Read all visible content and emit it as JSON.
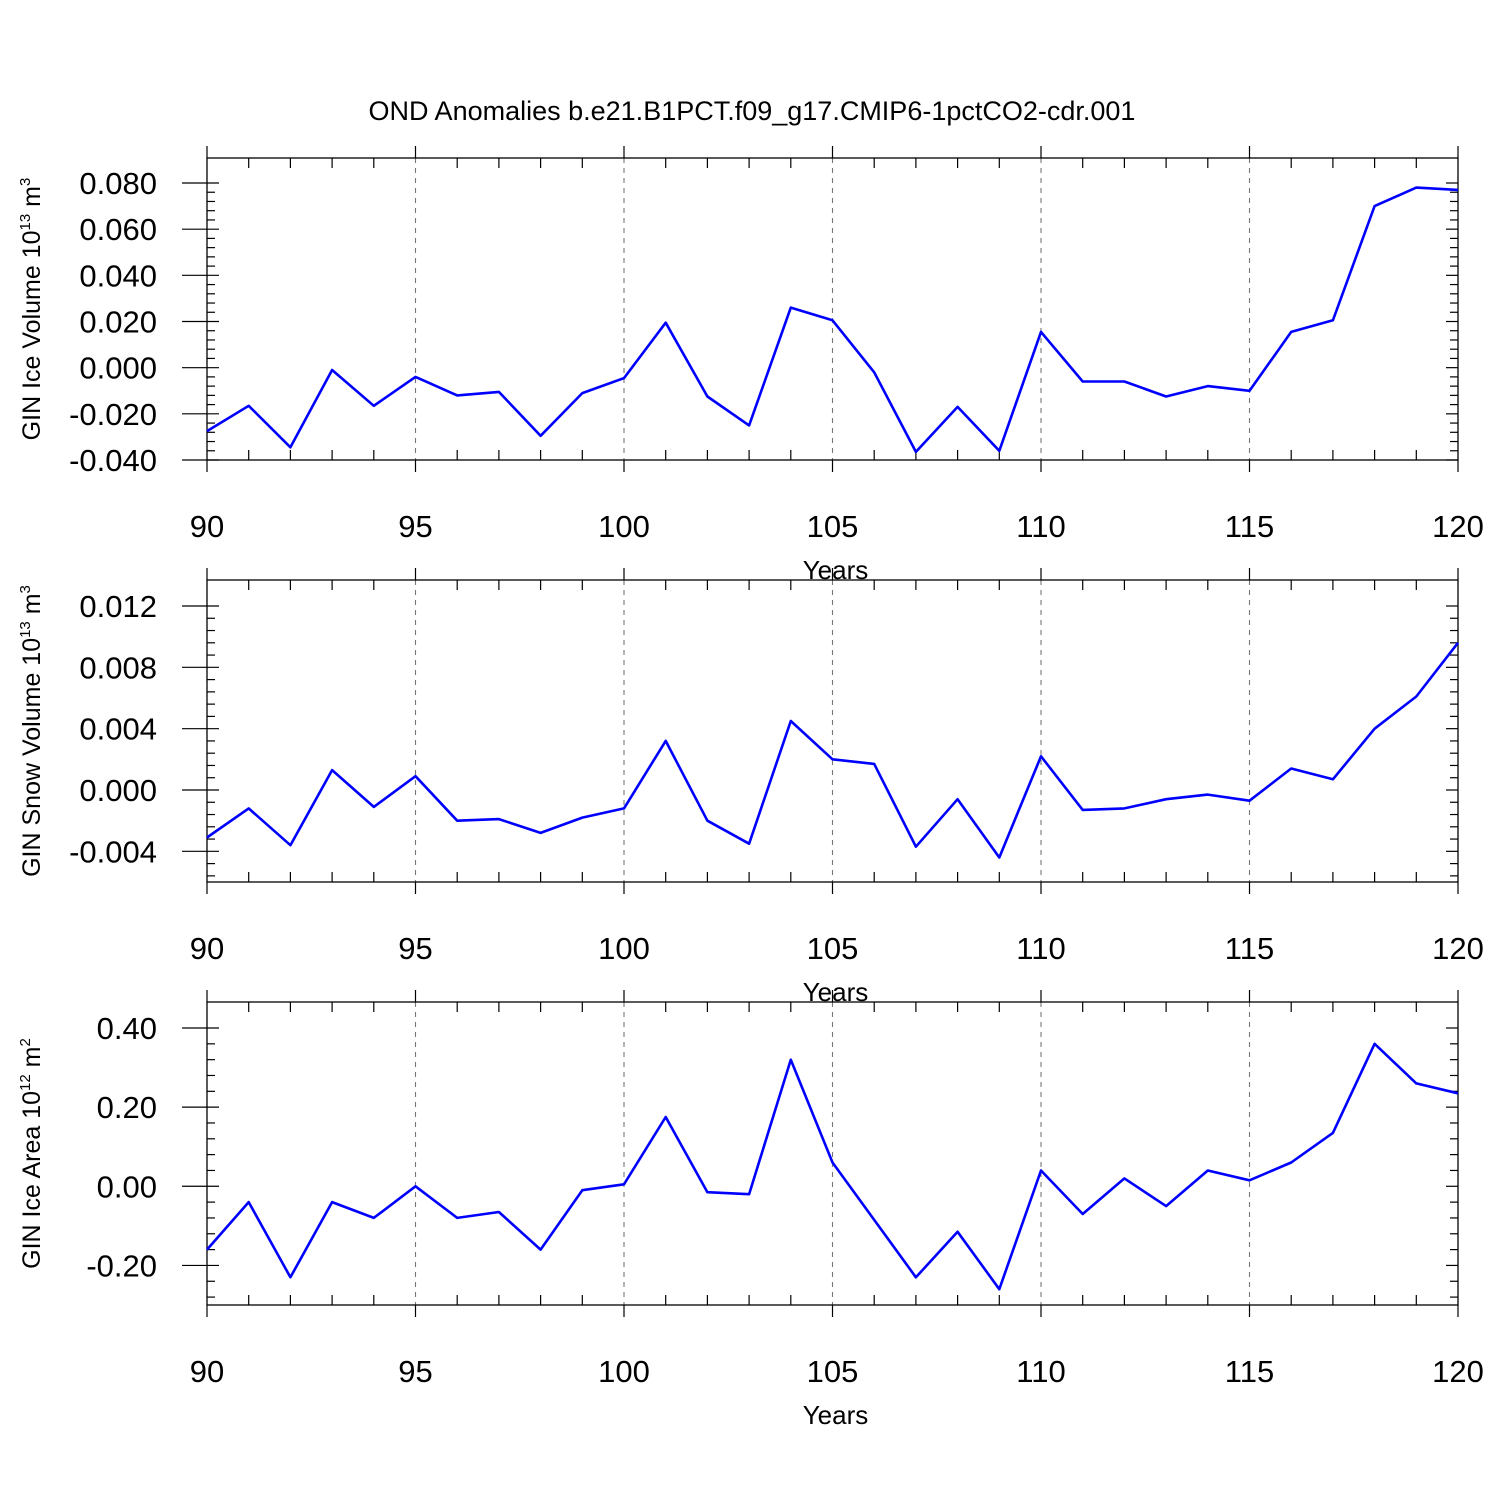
{
  "title": "OND Anomalies b.e21.B1PCT.f09_g17.CMIP6-1pctCO2-cdr.001",
  "colors": {
    "series": "#0000ff",
    "grid": "#777777",
    "axis": "#000000"
  },
  "chart_data": [
    {
      "type": "line",
      "ylabel": {
        "main": "GIN Ice Volume 10",
        "exp": "13",
        "unit": " m",
        "unit_exp": "3"
      },
      "xlabel": "Years",
      "xlim": [
        90,
        120
      ],
      "ylim": [
        -0.04,
        0.08
      ],
      "x_ticks": [
        90,
        95,
        100,
        105,
        110,
        115,
        120
      ],
      "x_tick_labels": [
        "90",
        "95",
        "100",
        "105",
        "110",
        "115",
        "120"
      ],
      "y_ticks": [
        -0.04,
        -0.02,
        0.0,
        0.02,
        0.04,
        0.06,
        0.08
      ],
      "y_tick_labels": [
        "-0.040",
        "-0.020",
        "0.000",
        "0.020",
        "0.040",
        "0.060",
        "0.080"
      ],
      "grid_x": [
        95,
        100,
        105,
        110,
        115
      ],
      "x": [
        90,
        91,
        92,
        93,
        94,
        95,
        96,
        97,
        98,
        99,
        100,
        101,
        102,
        103,
        104,
        105,
        106,
        107,
        108,
        109,
        110,
        111,
        112,
        113,
        114,
        115,
        116,
        117,
        118,
        119,
        120
      ],
      "y": [
        -0.0275,
        -0.0165,
        -0.0345,
        -0.001,
        -0.0165,
        -0.004,
        -0.012,
        -0.0105,
        -0.0295,
        -0.011,
        -0.0045,
        0.0195,
        -0.0125,
        -0.025,
        0.026,
        0.0205,
        -0.002,
        -0.0365,
        -0.017,
        -0.036,
        0.0155,
        -0.006,
        -0.006,
        -0.0125,
        -0.008,
        -0.01,
        0.0155,
        0.0205,
        0.07,
        0.078,
        0.077
      ]
    },
    {
      "type": "line",
      "ylabel": {
        "main": "GIN Snow Volume 10",
        "exp": "13",
        "unit": " m",
        "unit_exp": "3"
      },
      "xlabel": "Years",
      "xlim": [
        90,
        120
      ],
      "ylim": [
        -0.006,
        0.012
      ],
      "x_ticks": [
        90,
        95,
        100,
        105,
        110,
        115,
        120
      ],
      "x_tick_labels": [
        "90",
        "95",
        "100",
        "105",
        "110",
        "115",
        "120"
      ],
      "y_ticks": [
        -0.004,
        0.0,
        0.004,
        0.008,
        0.012
      ],
      "y_tick_labels": [
        "-0.004",
        "0.000",
        "0.004",
        "0.008",
        "0.012"
      ],
      "grid_x": [
        95,
        100,
        105,
        110,
        115
      ],
      "x": [
        90,
        91,
        92,
        93,
        94,
        95,
        96,
        97,
        98,
        99,
        100,
        101,
        102,
        103,
        104,
        105,
        106,
        107,
        108,
        109,
        110,
        111,
        112,
        113,
        114,
        115,
        116,
        117,
        118,
        119,
        120
      ],
      "y": [
        -0.0031,
        -0.0012,
        -0.0036,
        0.0013,
        -0.0011,
        0.0009,
        -0.002,
        -0.0019,
        -0.0028,
        -0.0018,
        -0.0012,
        0.0032,
        -0.002,
        -0.0035,
        0.0045,
        0.002,
        0.0017,
        -0.0037,
        -0.0006,
        -0.0044,
        0.0022,
        -0.0013,
        -0.0012,
        -0.0006,
        -0.0003,
        -0.0007,
        0.0014,
        0.0007,
        0.004,
        0.0061,
        0.0096
      ]
    },
    {
      "type": "line",
      "ylabel": {
        "main": "GIN Ice Area 10",
        "exp": "12",
        "unit": " m",
        "unit_exp": "2"
      },
      "xlabel": "Years",
      "xlim": [
        90,
        120
      ],
      "ylim": [
        -0.3,
        0.4
      ],
      "x_ticks": [
        90,
        95,
        100,
        105,
        110,
        115,
        120
      ],
      "x_tick_labels": [
        "90",
        "95",
        "100",
        "105",
        "110",
        "115",
        "120"
      ],
      "y_ticks": [
        -0.2,
        0.0,
        0.2,
        0.4
      ],
      "y_tick_labels": [
        "-0.20",
        "0.00",
        "0.20",
        "0.40"
      ],
      "grid_x": [
        95,
        100,
        105,
        110,
        115
      ],
      "x": [
        90,
        91,
        92,
        93,
        94,
        95,
        96,
        97,
        98,
        99,
        100,
        101,
        102,
        103,
        104,
        105,
        106,
        107,
        108,
        109,
        110,
        111,
        112,
        113,
        114,
        115,
        116,
        117,
        118,
        119,
        120
      ],
      "y": [
        -0.16,
        -0.04,
        -0.23,
        -0.04,
        -0.08,
        0.0,
        -0.08,
        -0.065,
        -0.16,
        -0.01,
        0.005,
        0.175,
        -0.015,
        -0.02,
        0.32,
        0.06,
        -0.085,
        -0.23,
        -0.115,
        -0.26,
        0.04,
        -0.07,
        0.02,
        -0.05,
        0.04,
        0.015,
        0.06,
        0.135,
        0.36,
        0.26,
        0.235
      ]
    }
  ]
}
